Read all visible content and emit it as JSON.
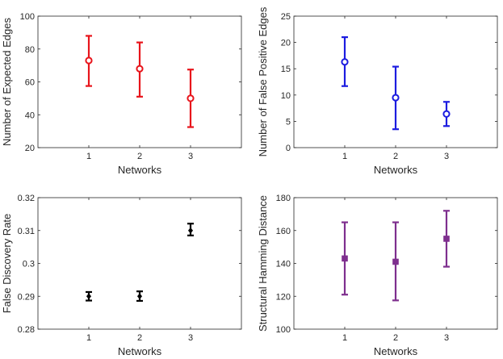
{
  "chart_data": [
    {
      "type": "errorbar",
      "marker": "circle",
      "color": "#e8141b",
      "xlabel": "Networks",
      "ylabel": "Number of Expected Edges",
      "xlim": [
        0,
        4
      ],
      "ylim": [
        20,
        100
      ],
      "x_ticks": [
        "1",
        "2",
        "3"
      ],
      "y_ticks": [
        "20",
        "40",
        "60",
        "80",
        "100"
      ],
      "points": [
        {
          "x": 1,
          "y": 73,
          "low": 57.5,
          "high": 88
        },
        {
          "x": 2,
          "y": 68,
          "low": 51,
          "high": 84
        },
        {
          "x": 3,
          "y": 50,
          "low": 32.5,
          "high": 67.5
        }
      ]
    },
    {
      "type": "errorbar",
      "marker": "circle",
      "color": "#1c1ce0",
      "xlabel": "Networks",
      "ylabel": "Number of False Positive Edges",
      "xlim": [
        0,
        4
      ],
      "ylim": [
        0,
        25
      ],
      "x_ticks": [
        "1",
        "2",
        "3"
      ],
      "y_ticks": [
        "0",
        "5",
        "10",
        "15",
        "20",
        "25"
      ],
      "points": [
        {
          "x": 1,
          "y": 16.3,
          "low": 11.7,
          "high": 21
        },
        {
          "x": 2,
          "y": 9.5,
          "low": 3.5,
          "high": 15.4
        },
        {
          "x": 3,
          "y": 6.4,
          "low": 4.1,
          "high": 8.7
        }
      ]
    },
    {
      "type": "errorbar",
      "marker": "diamond",
      "color": "#000000",
      "xlabel": "Networks",
      "ylabel": "False Discovery Rate",
      "xlim": [
        0,
        4
      ],
      "ylim": [
        0.28,
        0.32
      ],
      "x_ticks": [
        "1",
        "2",
        "3"
      ],
      "y_ticks": [
        "0.28",
        "0.29",
        "0.3",
        "0.31",
        "0.32"
      ],
      "points": [
        {
          "x": 1,
          "y": 0.29,
          "low": 0.2887,
          "high": 0.2913
        },
        {
          "x": 2,
          "y": 0.29,
          "low": 0.2886,
          "high": 0.2915
        },
        {
          "x": 3,
          "y": 0.31,
          "low": 0.3085,
          "high": 0.3121
        }
      ]
    },
    {
      "type": "errorbar",
      "marker": "square",
      "color": "#7e2f8e",
      "xlabel": "Networks",
      "ylabel": "Structural Hamming Distance",
      "xlim": [
        0,
        4
      ],
      "ylim": [
        100,
        180
      ],
      "x_ticks": [
        "1",
        "2",
        "3"
      ],
      "y_ticks": [
        "100",
        "120",
        "140",
        "160",
        "180"
      ],
      "points": [
        {
          "x": 1,
          "y": 143,
          "low": 121,
          "high": 165
        },
        {
          "x": 2,
          "y": 141,
          "low": 117.5,
          "high": 165
        },
        {
          "x": 3,
          "y": 155,
          "low": 138,
          "high": 172
        }
      ]
    }
  ]
}
